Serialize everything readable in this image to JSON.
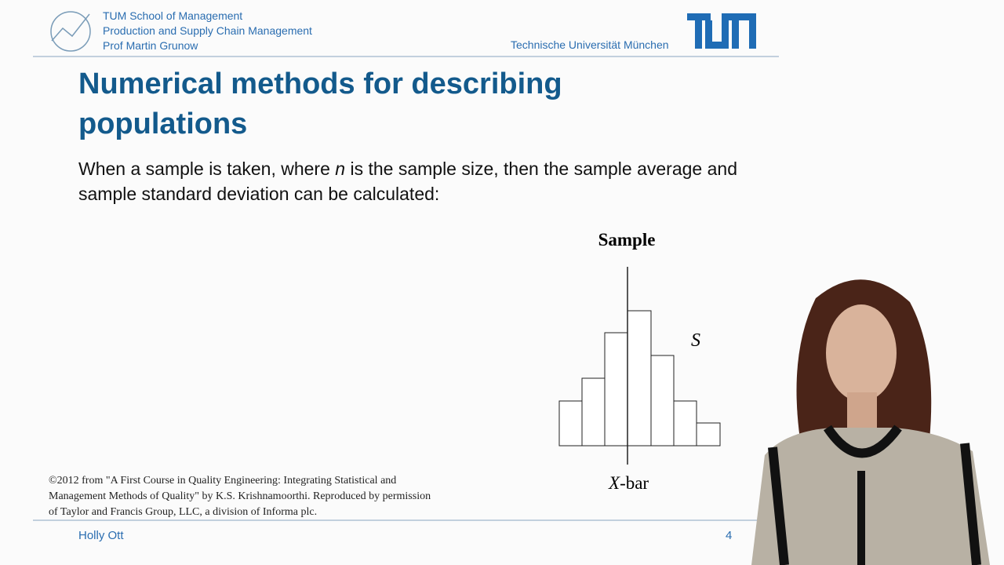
{
  "header": {
    "lines": [
      "TUM School of Management",
      "Production and Supply Chain Management",
      "Prof Martin Grunow"
    ],
    "university": "Technische Universität München"
  },
  "slide": {
    "title": "Numerical methods for describing populations",
    "body": [
      "When a sample is taken, where ",
      "n",
      " is the sample size, then the sample average and sample standard deviation can be calculated:"
    ]
  },
  "figure": {
    "title": "Sample",
    "std_label": "S",
    "mean_label": [
      "X",
      "-bar"
    ]
  },
  "credit": "©2012 from \"A First Course in Quality Engineering: Integrating Statistical and Management Methods of Quality\" by K.S. Krishnamoorthi. Reproduced by permission of Taylor and Francis Group, LLC, a division of Informa plc.",
  "footer": {
    "presenter": "Holly Ott",
    "page": 4
  }
}
